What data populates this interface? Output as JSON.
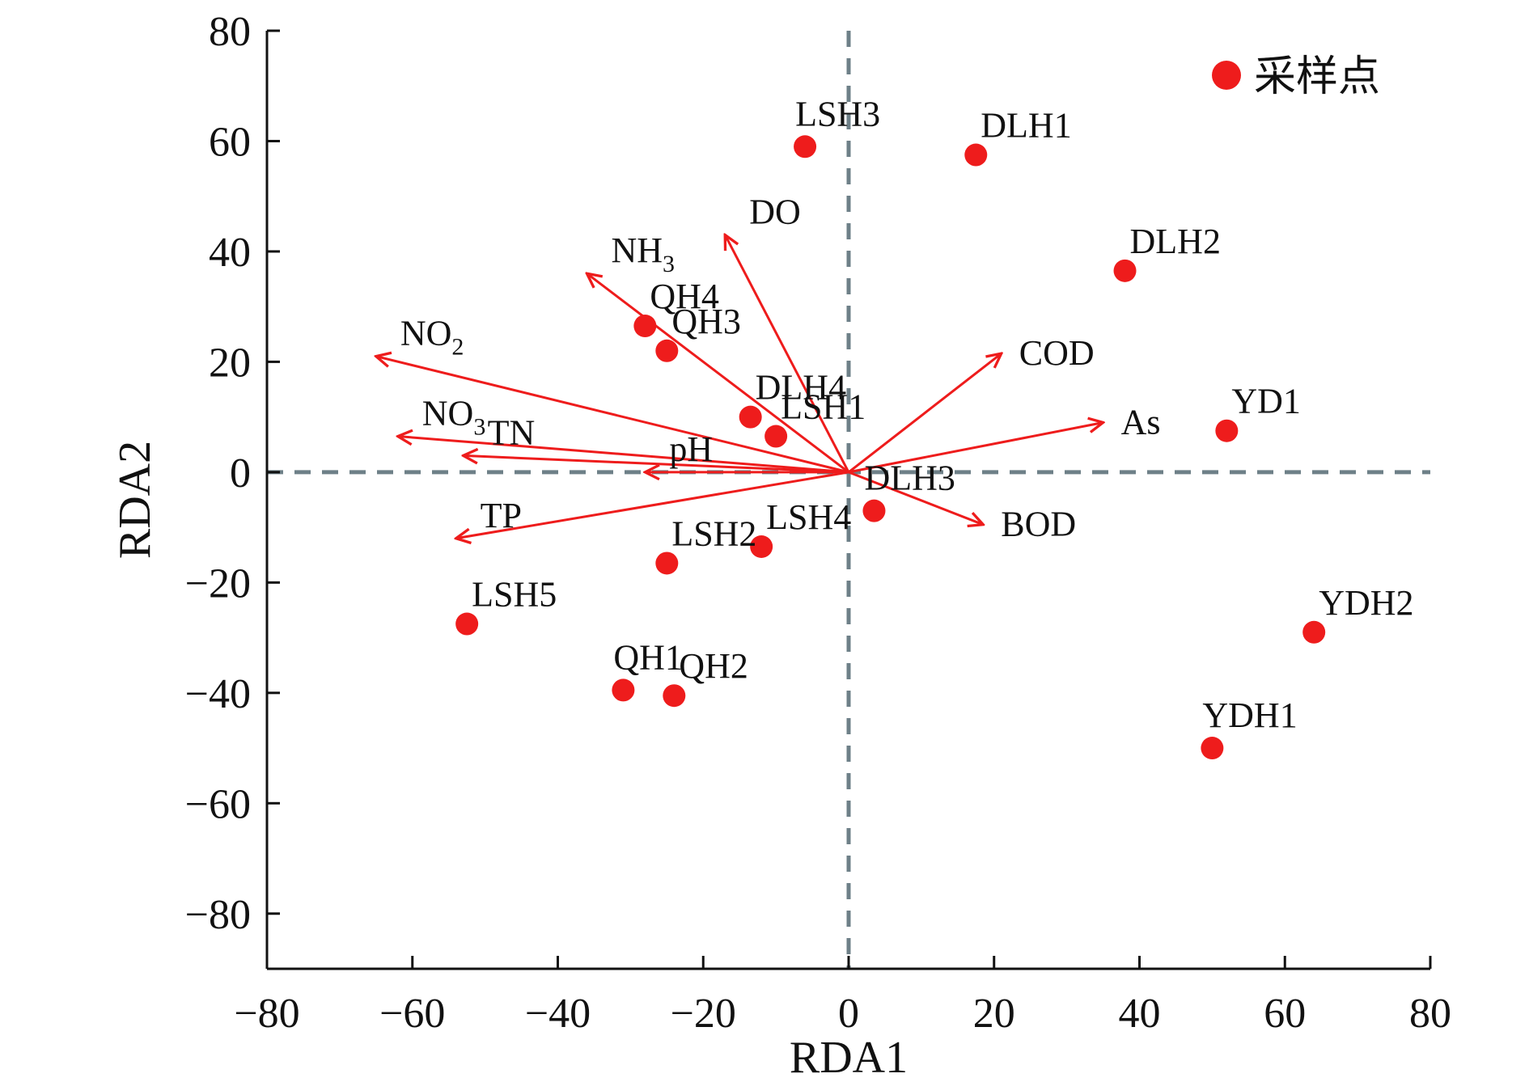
{
  "chart_data": {
    "type": "scatter",
    "title": "",
    "xlabel": "RDA1",
    "ylabel": "RDA2",
    "xlim": [
      -80,
      80
    ],
    "ylim": [
      -90,
      80
    ],
    "xticks": [
      -80,
      -60,
      -40,
      -20,
      0,
      20,
      40,
      60,
      80
    ],
    "yticks": [
      -80,
      -60,
      -40,
      -20,
      0,
      20,
      40,
      60,
      80
    ],
    "tick_labels_x": [
      "−80",
      "−60",
      "−40",
      "−20",
      "0",
      "20",
      "40",
      "60",
      "80"
    ],
    "tick_labels_y": [
      "−80",
      "−60",
      "−40",
      "−20",
      "0",
      "20",
      "40",
      "60",
      "80"
    ],
    "reference_lines": {
      "x": 0,
      "y": 0,
      "style": "dashed"
    },
    "colors": {
      "marker": "#ee1c1c",
      "arrow": "#ee1c1c",
      "axis": "#111111",
      "reference": "#6e8088"
    },
    "legend": {
      "label": "采样点",
      "position": "top-right"
    },
    "sites": [
      {
        "name": "LSH3",
        "x": -6,
        "y": 59,
        "label_pos": "above"
      },
      {
        "name": "DLH1",
        "x": 17.5,
        "y": 57.5,
        "label_pos": "upper-right"
      },
      {
        "name": "DLH2",
        "x": 38,
        "y": 36.5,
        "label_pos": "upper-right"
      },
      {
        "name": "QH4",
        "x": -28,
        "y": 26.5,
        "label_pos": "upper-right"
      },
      {
        "name": "QH3",
        "x": -25,
        "y": 22,
        "label_pos": "upper-right"
      },
      {
        "name": "DLH4",
        "x": -13.5,
        "y": 10,
        "label_pos": "upper-right"
      },
      {
        "name": "LSH1",
        "x": -10,
        "y": 6.5,
        "label_pos": "upper-right"
      },
      {
        "name": "YD1",
        "x": 52,
        "y": 7.5,
        "label_pos": "upper-right"
      },
      {
        "name": "DLH3",
        "x": 3.5,
        "y": -7,
        "label_pos": "above"
      },
      {
        "name": "LSH4",
        "x": -12,
        "y": -13.5,
        "label_pos": "upper-right"
      },
      {
        "name": "LSH2",
        "x": -25,
        "y": -16.5,
        "label_pos": "upper-right"
      },
      {
        "name": "LSH5",
        "x": -52.5,
        "y": -27.5,
        "label_pos": "upper-right"
      },
      {
        "name": "YDH2",
        "x": 64,
        "y": -29,
        "label_pos": "upper-right"
      },
      {
        "name": "QH1",
        "x": -31,
        "y": -39.5,
        "label_pos": "above"
      },
      {
        "name": "QH2",
        "x": -24,
        "y": -40.5,
        "label_pos": "upper-right"
      },
      {
        "name": "YDH1",
        "x": 50,
        "y": -50,
        "label_pos": "above"
      }
    ],
    "variables": [
      {
        "name": "DO",
        "main": "DO",
        "sub": "",
        "x": -17,
        "y": 43,
        "label_pos": "upper-right"
      },
      {
        "name": "NH3",
        "main": "NH",
        "sub": "3",
        "x": -36,
        "y": 36,
        "label_pos": "upper-right"
      },
      {
        "name": "NO2",
        "main": "NO",
        "sub": "2",
        "x": -65,
        "y": 21,
        "label_pos": "upper-right"
      },
      {
        "name": "COD",
        "main": "COD",
        "sub": "",
        "x": 21,
        "y": 21.5,
        "label_pos": "right"
      },
      {
        "name": "As",
        "main": "As",
        "sub": "",
        "x": 35,
        "y": 9,
        "label_pos": "right"
      },
      {
        "name": "NO3",
        "main": "NO",
        "sub": "3",
        "x": -62,
        "y": 6.5,
        "label_pos": "upper-right"
      },
      {
        "name": "TN",
        "main": "TN",
        "sub": "",
        "x": -53,
        "y": 3,
        "label_pos": "upper-right"
      },
      {
        "name": "pH",
        "main": "pH",
        "sub": "",
        "x": -28,
        "y": 0,
        "label_pos": "upper-right"
      },
      {
        "name": "BOD",
        "main": "BOD",
        "sub": "",
        "x": 18.5,
        "y": -9.5,
        "label_pos": "right"
      },
      {
        "name": "TP",
        "main": "TP",
        "sub": "",
        "x": -54,
        "y": -12,
        "label_pos": "upper-right"
      }
    ]
  }
}
